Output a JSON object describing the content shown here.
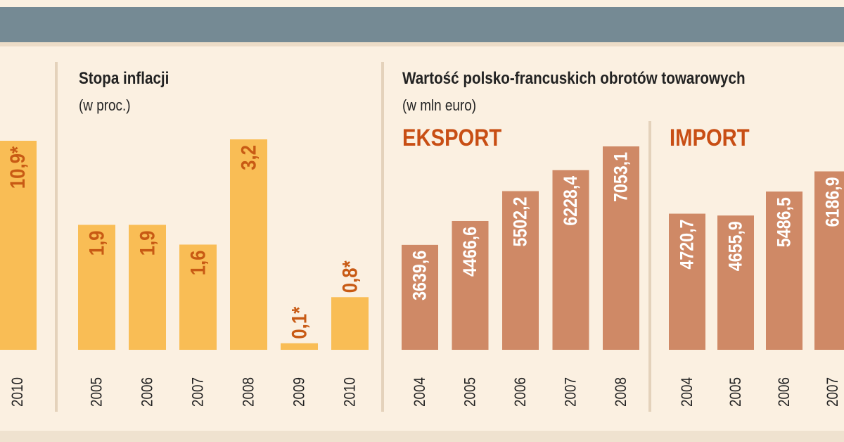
{
  "colors": {
    "header_band": "#758a94",
    "background": "#fbf0e1",
    "inflation_bar": "#f9bd55",
    "trade_bar": "#cf8966",
    "value_label_inflation": "#c85a14",
    "value_label_trade": "#ffffff",
    "section_title": "#c84e14",
    "divider": "#e4d2bb",
    "text": "#222222"
  },
  "chart_data": [
    {
      "type": "bar",
      "title": "",
      "categories": [
        "2010"
      ],
      "values": [
        10.9
      ],
      "value_labels": [
        "10,9*"
      ]
    },
    {
      "type": "bar",
      "title": "Stopa inflacji",
      "subtitle": "(w proc.)",
      "categories": [
        "2005",
        "2006",
        "2007",
        "2008",
        "2009",
        "2010"
      ],
      "values": [
        1.9,
        1.9,
        1.6,
        3.2,
        0.1,
        0.8
      ],
      "value_labels": [
        "1,9",
        "1,9",
        "1,6",
        "3,2",
        "0,1*",
        "0,8*"
      ]
    },
    {
      "type": "bar",
      "title": "Wartość polsko-francuskich obrotów towarowych",
      "subtitle": "(w mln euro)",
      "panels": [
        {
          "title": "EKSPORT",
          "categories": [
            "2004",
            "2005",
            "2006",
            "2007",
            "2008"
          ],
          "values": [
            3639.6,
            4466.6,
            5502.2,
            6228.4,
            7053.1
          ],
          "value_labels": [
            "3639,6",
            "4466,6",
            "5502,2",
            "6228,4",
            "7053,1"
          ]
        },
        {
          "title": "IMPORT",
          "categories": [
            "2004",
            "2005",
            "2006",
            "2007"
          ],
          "values": [
            4720.7,
            4655.9,
            5486.5,
            6186.9
          ],
          "value_labels": [
            "4720,7",
            "4655,9",
            "5486,5",
            "6186,9"
          ]
        }
      ]
    }
  ]
}
